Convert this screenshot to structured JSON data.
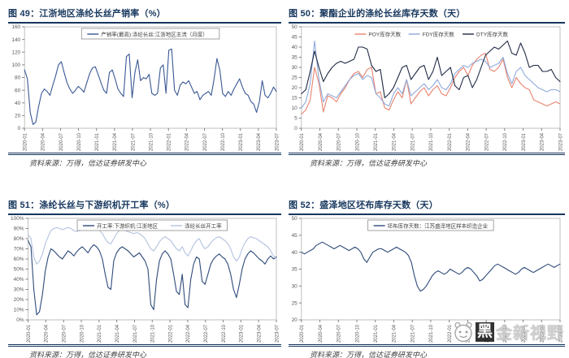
{
  "page": {
    "background": "#ffffff",
    "accent_navy": "#17375E"
  },
  "logo": {
    "name": "黑金新视野",
    "first_char": "黑",
    "rest": "金新视野",
    "icon": "panda-face-icon"
  },
  "chart_data": [
    {
      "type": "line",
      "title": "图 49：江浙地区涤纶长丝产销率（%）",
      "source": "资料来源：万得，信达证券研发中心",
      "ylim": [
        0,
        160
      ],
      "ytick_step": 20,
      "ytick_suffix": "",
      "grid": false,
      "legend_position": "top",
      "legend_boxed": true,
      "x_tick_labels": [
        "2020-01",
        "2020-04",
        "2020-07",
        "2020-10",
        "2021-01",
        "2021-04",
        "2021-07",
        "2021-10",
        "2022-01",
        "2022-04",
        "2022-07",
        "2022-10",
        "2023-01",
        "2023-04",
        "2023-07"
      ],
      "series": [
        {
          "name": "产销率(最高):涤纶长丝:江浙地区主流（月度）",
          "color": "#3A5894",
          "values": [
            92,
            78,
            25,
            6,
            10,
            35,
            55,
            62,
            58,
            52,
            68,
            83,
            100,
            105,
            88,
            72,
            62,
            55,
            60,
            66,
            62,
            57,
            72,
            86,
            95,
            97,
            85,
            72,
            60,
            55,
            88,
            92,
            78,
            62,
            55,
            50,
            113,
            117,
            48,
            88,
            108,
            75,
            80,
            78,
            85,
            55,
            52,
            55,
            95,
            100,
            55,
            123,
            125,
            60,
            52,
            68,
            73,
            70,
            75,
            65,
            55,
            58,
            45,
            52,
            55,
            58,
            52,
            78,
            110,
            92,
            55,
            50,
            58,
            52,
            62,
            70,
            78,
            65,
            55,
            52,
            42,
            38,
            25,
            42,
            75,
            52,
            48,
            55,
            65,
            58
          ]
        }
      ]
    },
    {
      "type": "line",
      "title": "图 50：聚酯企业的涤纶长丝库存天数（天）",
      "source": "资料来源：万得，信达证券研发中心",
      "ylim": [
        0,
        50
      ],
      "ytick_step": 5,
      "ytick_suffix": "",
      "grid": false,
      "legend_position": "top",
      "legend_boxed": false,
      "x_tick_labels": [
        "2020-01",
        "2020-04",
        "2020-07",
        "2020-10",
        "2021-01",
        "2021-04",
        "2021-07",
        "2021-10",
        "2022-01",
        "2022-04",
        "2022-07",
        "2022-10",
        "2023-01",
        "2023-04",
        "2023-07"
      ],
      "series": [
        {
          "name": "POY库存天数",
          "color": "#E8836F",
          "values": [
            7,
            9,
            14,
            30,
            22,
            8,
            16,
            15,
            13,
            17,
            20,
            24,
            27,
            28,
            25,
            29,
            30,
            17,
            18,
            10,
            9,
            14,
            18,
            15,
            24,
            12,
            15,
            18,
            20,
            16,
            19,
            21,
            17,
            16,
            20,
            25,
            28,
            30,
            26,
            31,
            34,
            36,
            37,
            29,
            28,
            30,
            34,
            25,
            20,
            25,
            22,
            20,
            19,
            14,
            13,
            12,
            11,
            12,
            13,
            12
          ]
        },
        {
          "name": "FDY库存天数",
          "color": "#8EA9DB",
          "values": [
            10,
            13,
            22,
            43,
            24,
            13,
            17,
            16,
            15,
            18,
            21,
            24,
            26,
            27,
            24,
            26,
            25,
            17,
            15,
            12,
            11,
            17,
            20,
            17,
            24,
            16,
            18,
            20,
            22,
            19,
            21,
            24,
            20,
            19,
            22,
            27,
            29,
            31,
            30,
            32,
            33,
            34,
            33,
            30,
            31,
            32,
            35,
            27,
            22,
            28,
            30,
            26,
            24,
            22,
            20,
            19,
            18,
            19,
            19,
            18
          ]
        },
        {
          "name": "DTY库存天数",
          "color": "#1F2A44",
          "values": [
            17,
            19,
            28,
            38,
            30,
            23,
            27,
            30,
            32,
            33,
            32,
            33,
            34,
            40,
            40,
            39,
            31,
            28,
            29,
            15,
            17,
            20,
            25,
            30,
            31,
            24,
            27,
            30,
            31,
            24,
            28,
            35,
            26,
            28,
            30,
            21,
            19,
            25,
            26,
            20,
            24,
            30,
            36,
            38,
            40,
            39,
            41,
            43,
            37,
            36,
            42,
            37,
            30,
            31,
            31,
            28,
            28,
            29,
            25,
            23
          ]
        }
      ]
    },
    {
      "type": "line",
      "title": "图 51：涤纶长丝与下游织机开工率（%）",
      "source": "资料来源：万得，信达证券研发中心",
      "ylim": [
        0,
        100
      ],
      "ytick_step": 10,
      "ytick_suffix": "%",
      "grid": false,
      "legend_position": "top",
      "legend_boxed": true,
      "x_tick_labels": [
        "2020-01",
        "2020-04",
        "2020-07",
        "2020-10",
        "2021-01",
        "2021-04",
        "2021-07",
        "2021-10",
        "2022-01",
        "2022-04",
        "2022-07",
        "2022-10",
        "2023-01",
        "2023-04",
        "2023-07"
      ],
      "series": [
        {
          "name": "开工率:下游织机:江浙地区",
          "color": "#2E4B7A",
          "values": [
            78,
            72,
            30,
            5,
            8,
            25,
            48,
            62,
            70,
            68,
            65,
            62,
            60,
            64,
            68,
            66,
            63,
            67,
            70,
            72,
            69,
            66,
            71,
            74,
            72,
            68,
            60,
            45,
            32,
            30,
            58,
            66,
            70,
            72,
            70,
            68,
            65,
            62,
            64,
            66,
            62,
            58,
            50,
            15,
            10,
            40,
            58,
            65,
            68,
            65,
            60,
            45,
            28,
            25,
            45,
            15,
            12,
            40,
            55,
            62,
            60,
            38,
            35,
            45,
            55,
            60,
            63,
            65,
            62,
            60,
            55,
            45,
            30,
            22,
            35,
            50,
            60,
            65,
            68,
            66,
            63,
            60,
            58,
            55,
            60,
            63,
            60,
            62
          ]
        },
        {
          "name": "涤纶长丝开工率",
          "color": "#B4C3DF",
          "values": [
            84,
            80,
            62,
            55,
            58,
            65,
            75,
            82,
            88,
            90,
            91,
            90,
            89,
            90,
            91,
            90,
            88,
            87,
            88,
            89,
            90,
            89,
            88,
            89,
            90,
            88,
            85,
            80,
            76,
            75,
            80,
            85,
            88,
            89,
            88,
            87,
            86,
            85,
            86,
            85,
            83,
            80,
            75,
            70,
            68,
            72,
            77,
            80,
            82,
            80,
            78,
            74,
            70,
            68,
            72,
            66,
            63,
            68,
            74,
            78,
            80,
            74,
            70,
            72,
            76,
            79,
            81,
            82,
            80,
            78,
            75,
            70,
            62,
            58,
            62,
            70,
            76,
            80,
            82,
            81,
            80,
            78,
            76,
            74,
            72,
            68,
            63,
            60
          ]
        }
      ]
    },
    {
      "type": "line",
      "title": "图 52：盛泽地区坯布库存天数（天）",
      "source": "资料来源：万得，信达证券研发中心",
      "ylim": [
        20,
        50
      ],
      "ytick_step": 5,
      "ytick_suffix": "",
      "grid": false,
      "legend_position": "top",
      "legend_boxed": true,
      "x_tick_labels": [
        "2020-01",
        "2020-04",
        "2020-07",
        "2020-10",
        "2021-01",
        "2021-04",
        "2021-07",
        "2021-10",
        "2022-01",
        "2022-04",
        "2022-07",
        "2022-10",
        "2023-01",
        "2023-04",
        "2023-07"
      ],
      "series": [
        {
          "name": "坯布库存天数：江苏盛泽地区样本织造企业",
          "color": "#2E4B7A",
          "values": [
            40,
            39.5,
            40,
            40.5,
            41,
            42,
            42.5,
            43,
            42.5,
            42,
            41.5,
            41,
            41.5,
            42,
            41.5,
            41,
            40.5,
            41,
            41.5,
            41,
            40,
            38,
            37,
            38.5,
            40,
            40.5,
            41,
            41,
            40.5,
            40,
            40.5,
            41,
            41.5,
            41,
            40.5,
            40,
            39,
            37,
            33,
            30,
            28.5,
            29,
            30,
            31.5,
            33,
            34,
            34.5,
            34,
            33.5,
            34,
            35,
            34.5,
            34,
            33.5,
            34,
            35,
            35.5,
            35,
            34,
            33,
            31.5,
            32,
            33,
            34,
            35,
            36,
            36.5,
            36,
            35.5,
            35,
            34.5,
            34,
            33.5,
            34,
            35,
            35.5,
            35,
            34.5,
            34,
            34.5,
            35,
            35.5,
            36,
            36.5,
            36,
            35.5,
            36,
            36.5
          ]
        }
      ]
    }
  ]
}
